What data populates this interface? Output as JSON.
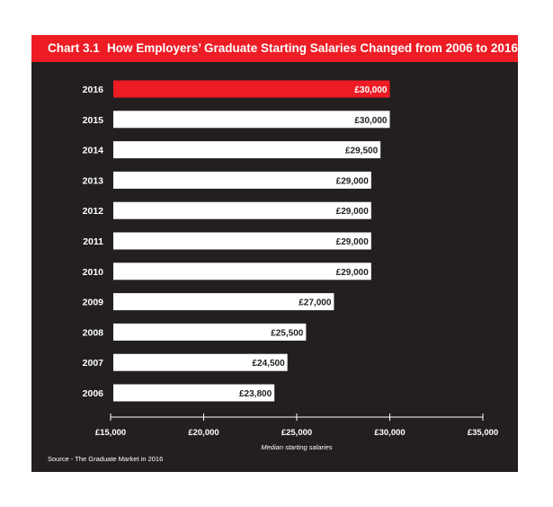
{
  "chart_title_number": "Chart 3.1",
  "chart_title": "How Employers’ Graduate Starting Salaries Changed from 2006 to 2016",
  "source": "Source - The Graduate Market in 2016",
  "colors": {
    "panel": "#231f20",
    "accent": "#ee1c25",
    "bar": "#ffffff",
    "highlight_bar": "#ee1c25"
  },
  "chart_data": {
    "type": "bar",
    "orientation": "horizontal",
    "categories": [
      "2016",
      "2015",
      "2014",
      "2013",
      "2012",
      "2011",
      "2010",
      "2009",
      "2008",
      "2007",
      "2006"
    ],
    "values": [
      30000,
      30000,
      29500,
      29000,
      29000,
      29000,
      29000,
      27000,
      25500,
      24500,
      23800
    ],
    "value_labels": [
      "£30,000",
      "£30,000",
      "£29,500",
      "£29,000",
      "£29,000",
      "£29,000",
      "£29,000",
      "£27,000",
      "£25,500",
      "£24,500",
      "£23,800"
    ],
    "highlight_category": "2016",
    "xlabel": "Median starting salaries",
    "xlim": [
      15000,
      35000
    ],
    "xticks": [
      15000,
      20000,
      25000,
      30000,
      35000
    ],
    "xtick_labels": [
      "£15,000",
      "£20,000",
      "£25,000",
      "£30,000",
      "£35,000"
    ],
    "grid": false,
    "legend": "none"
  }
}
